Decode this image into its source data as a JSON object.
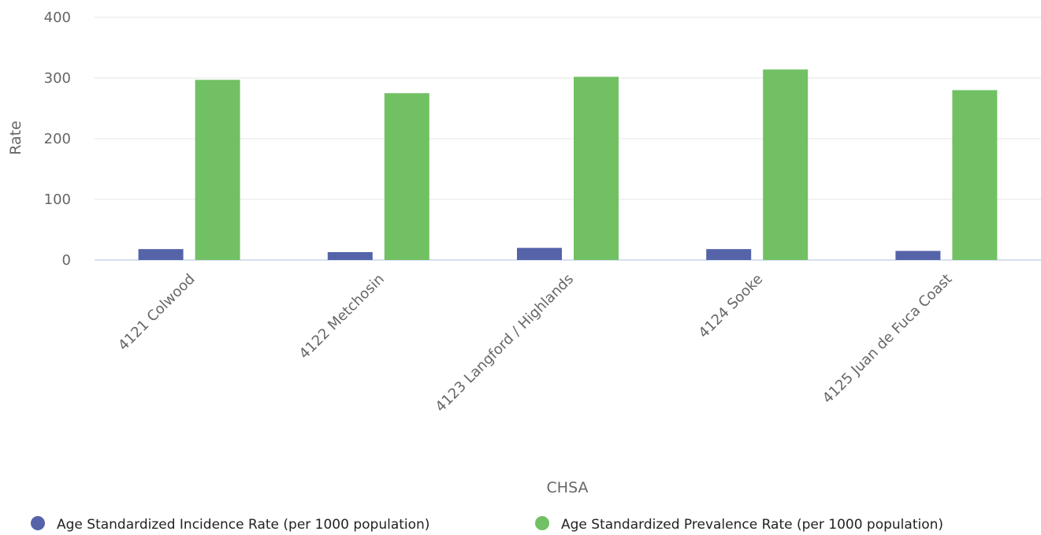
{
  "chart_data": {
    "type": "bar",
    "xlabel": "CHSA",
    "ylabel": "Rate",
    "ylim": [
      0,
      400
    ],
    "yticks": [
      0,
      100,
      200,
      300,
      400
    ],
    "grid": true,
    "legend_position": "bottom",
    "categories": [
      "4121 Colwood",
      "4122 Metchosin",
      "4123 Langford / Highlands",
      "4124 Sooke",
      "4125 Juan de Fuca Coast"
    ],
    "series": [
      {
        "name": "Age Standardized Incidence Rate (per 1000 population)",
        "color": "#5563a8",
        "values": [
          18,
          13,
          20,
          18,
          15
        ]
      },
      {
        "name": "Age Standardized Prevalence Rate (per 1000 population)",
        "color": "#72c064",
        "values": [
          297,
          275,
          302,
          314,
          280
        ]
      }
    ]
  }
}
